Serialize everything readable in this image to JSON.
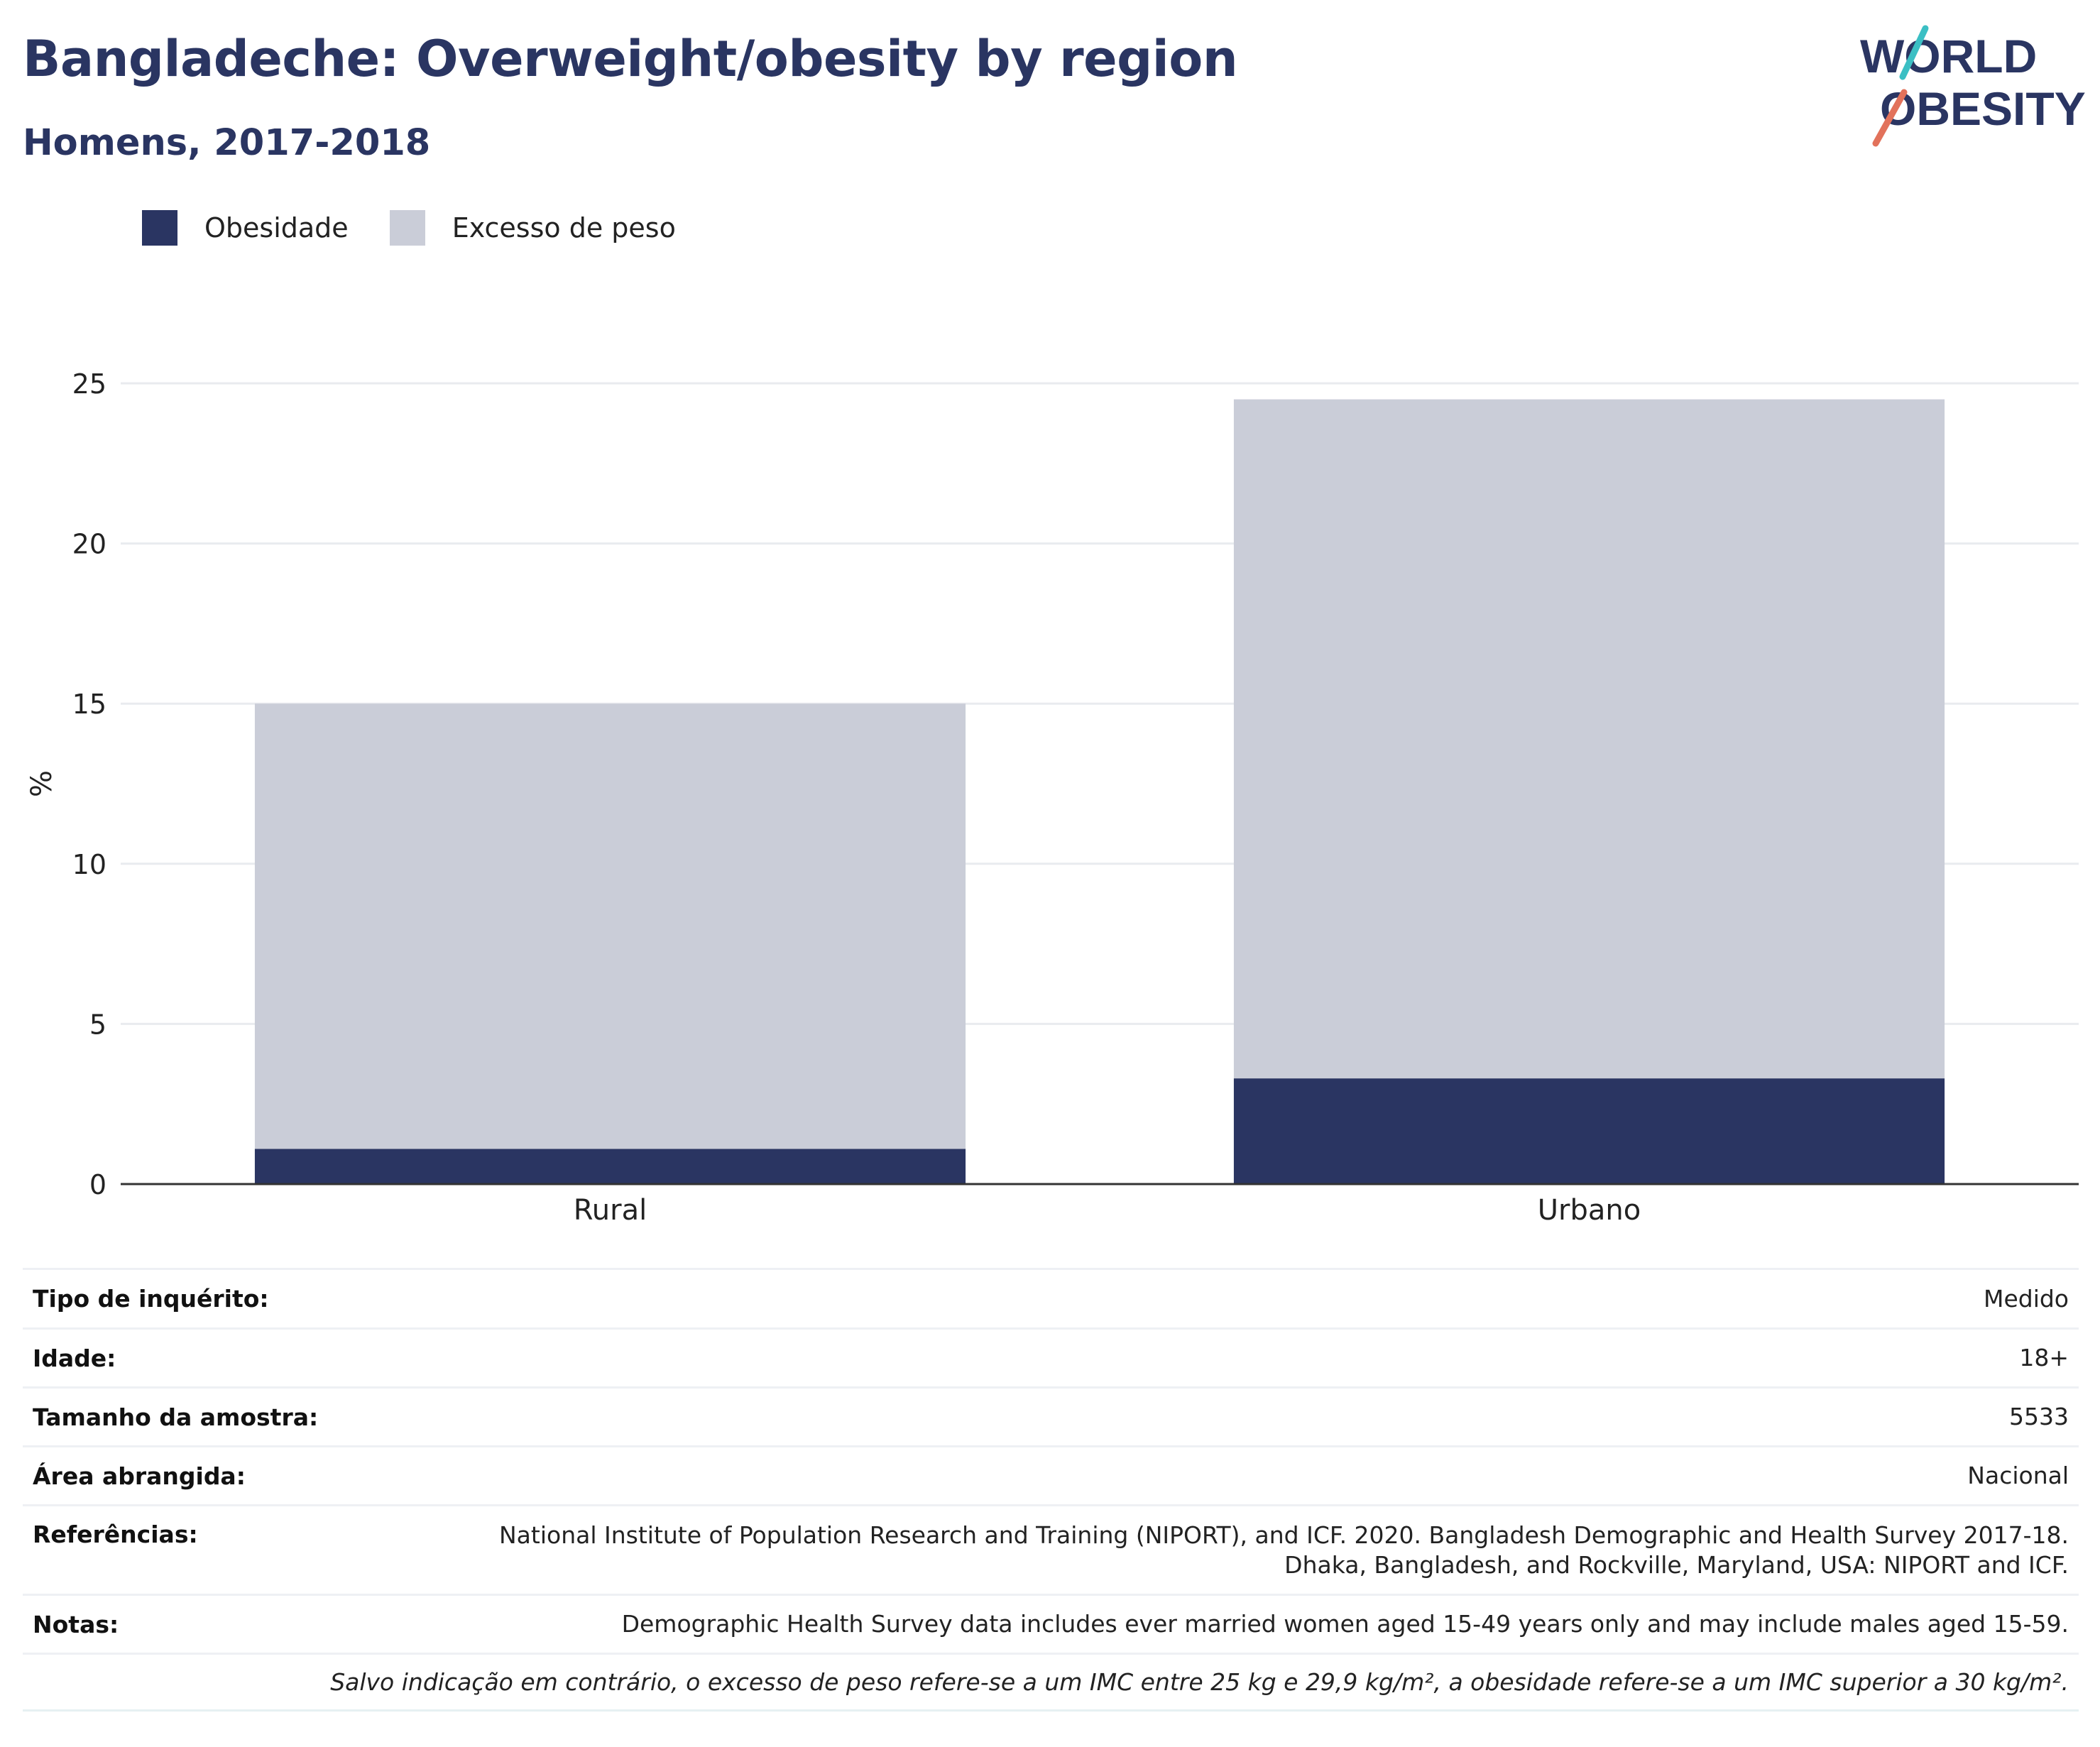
{
  "title": "Bangladeche: Overweight/obesity by region",
  "subtitle": "Homens, 2017-2018",
  "logo": {
    "line1": "WORLD",
    "line2": "OBESITY"
  },
  "colors": {
    "obesity": "#2a3562",
    "overweight": "#cacdd8",
    "title": "#2a3562",
    "grid": "#e9ebef",
    "axis": "#333333"
  },
  "legend": {
    "obesity_label": "Obesidade",
    "overweight_label": "Excesso de peso"
  },
  "chart_data": {
    "type": "bar",
    "stacked": true,
    "categories": [
      "Rural",
      "Urbano"
    ],
    "series": [
      {
        "name": "Obesidade",
        "values": [
          1.1,
          3.3
        ]
      },
      {
        "name": "Excesso de peso",
        "values": [
          13.9,
          21.2
        ]
      }
    ],
    "ylabel": "%",
    "ylim": [
      0,
      25
    ],
    "yticks": [
      "0",
      "5",
      "10",
      "15",
      "20",
      "25"
    ],
    "grid": true,
    "legend_position": "top-left"
  },
  "info": {
    "survey_type": {
      "label": "Tipo de inquérito:",
      "value": "Medido"
    },
    "age": {
      "label": "Idade:",
      "value": "18+"
    },
    "sample_size": {
      "label": "Tamanho da amostra:",
      "value": "5533"
    },
    "area": {
      "label": "Área abrangida:",
      "value": "Nacional"
    },
    "references": {
      "label": "Referências:",
      "value_line1": "National Institute of Population Research and Training (NIPORT), and ICF. 2020. Bangladesh Demographic and Health Survey 2017-18.",
      "value_line2": "Dhaka, Bangladesh, and Rockville, Maryland, USA: NIPORT and ICF."
    },
    "notes": {
      "label": "Notas:",
      "value": "Demographic Health Survey data includes ever married women aged 15-49 years only and may include males aged 15-59."
    },
    "footnote": "Salvo indicação em contrário, o excesso de peso refere-se a um IMC entre 25 kg e 29,9 kg/m², a obesidade refere-se a um IMC superior a 30 kg/m²."
  }
}
